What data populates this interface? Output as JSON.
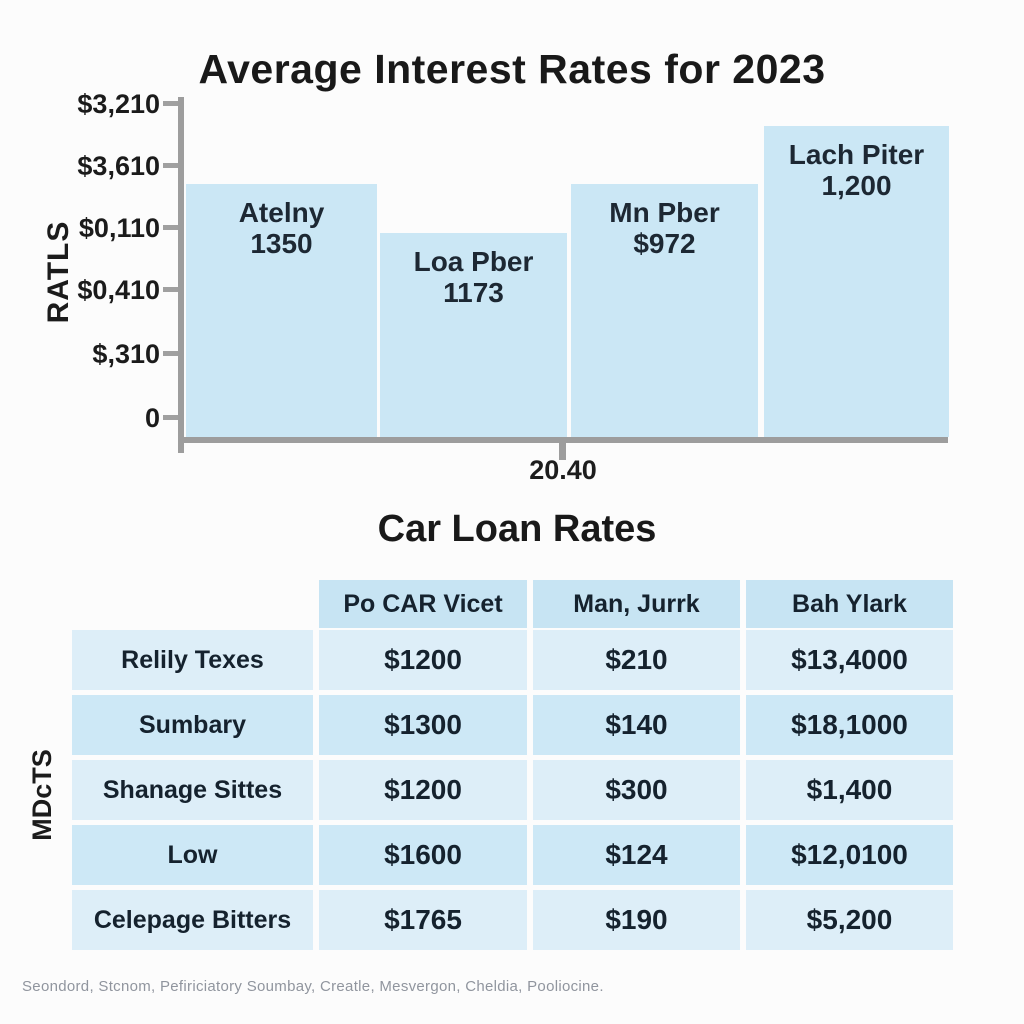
{
  "bar_chart": {
    "title": "Average Interest Rates for 2023",
    "y_axis_label": "RATLS",
    "y_ticks": [
      "$3,210",
      "$3,610",
      "$0,110",
      "$0,410",
      "$,310",
      "0"
    ],
    "x_tick_label": "20.40",
    "bars": [
      {
        "name": "Atelny",
        "value": "1350"
      },
      {
        "name": "Loa Pber",
        "value": "1173"
      },
      {
        "name": "Mn Pber",
        "value": "$972"
      },
      {
        "name": "Lach Piter",
        "value": "1,200"
      }
    ],
    "bar_color": "#cbe7f5",
    "axis_color": "#9d9d9d"
  },
  "table_section": {
    "title": "Car Loan Rates",
    "side_label": "MDcTS",
    "headers": [
      "Po CAR Vicet",
      "Man, Jurrk",
      "Bah Ylark"
    ],
    "rows": [
      {
        "label": "Relily Texes",
        "values": [
          "$1200",
          "$210",
          "$13,4000"
        ]
      },
      {
        "label": "Sumbary",
        "values": [
          "$1300",
          "$140",
          "$18,1000"
        ]
      },
      {
        "label": "Shanage Sittes",
        "values": [
          "$1200",
          "$300",
          "$1,400"
        ]
      },
      {
        "label": "Low",
        "values": [
          "$1600",
          "$124",
          "$12,0100"
        ]
      },
      {
        "label": "Celepage Bitters",
        "values": [
          "$1765",
          "$190",
          "$5,200"
        ]
      }
    ],
    "header_color": "#c7e4f3",
    "row_color_light": "#ddeef8",
    "row_color_dark": "#cde8f6"
  },
  "caption": "Seondord, Stcnom, Pefiriciatory Soumbay, Creatle, Mesvergon, Cheldia, Pooliocine.",
  "chart_data": [
    {
      "type": "bar",
      "title": "Average Interest Rates for 2023",
      "categories": [
        "Atelny",
        "Loa Pber",
        "Mn Pber",
        "Lach Piter"
      ],
      "values": [
        1350,
        1173,
        972,
        1200
      ],
      "data_labels": [
        "1350",
        "1173",
        "$972",
        "1,200"
      ],
      "xlabel": "20.40",
      "ylabel": "RATLS",
      "y_tick_labels": [
        "$3,210",
        "$3,610",
        "$0,110",
        "$0,410",
        "$,310",
        "0"
      ],
      "bar_color": "#cbe7f5",
      "grid": false,
      "legend": false
    },
    {
      "type": "table",
      "title": "Car Loan Rates",
      "row_axis_label": "MDcTS",
      "columns": [
        "",
        "Po CAR Vicet",
        "Man, Jurrk",
        "Bah Ylark"
      ],
      "rows": [
        [
          "Relily Texes",
          "$1200",
          "$210",
          "$13,4000"
        ],
        [
          "Sumbary",
          "$1300",
          "$140",
          "$18,1000"
        ],
        [
          "Shanage Sittes",
          "$1200",
          "$300",
          "$1,400"
        ],
        [
          "Low",
          "$1600",
          "$124",
          "$12,0100"
        ],
        [
          "Celepage Bitters",
          "$1765",
          "$190",
          "$5,200"
        ]
      ]
    }
  ]
}
